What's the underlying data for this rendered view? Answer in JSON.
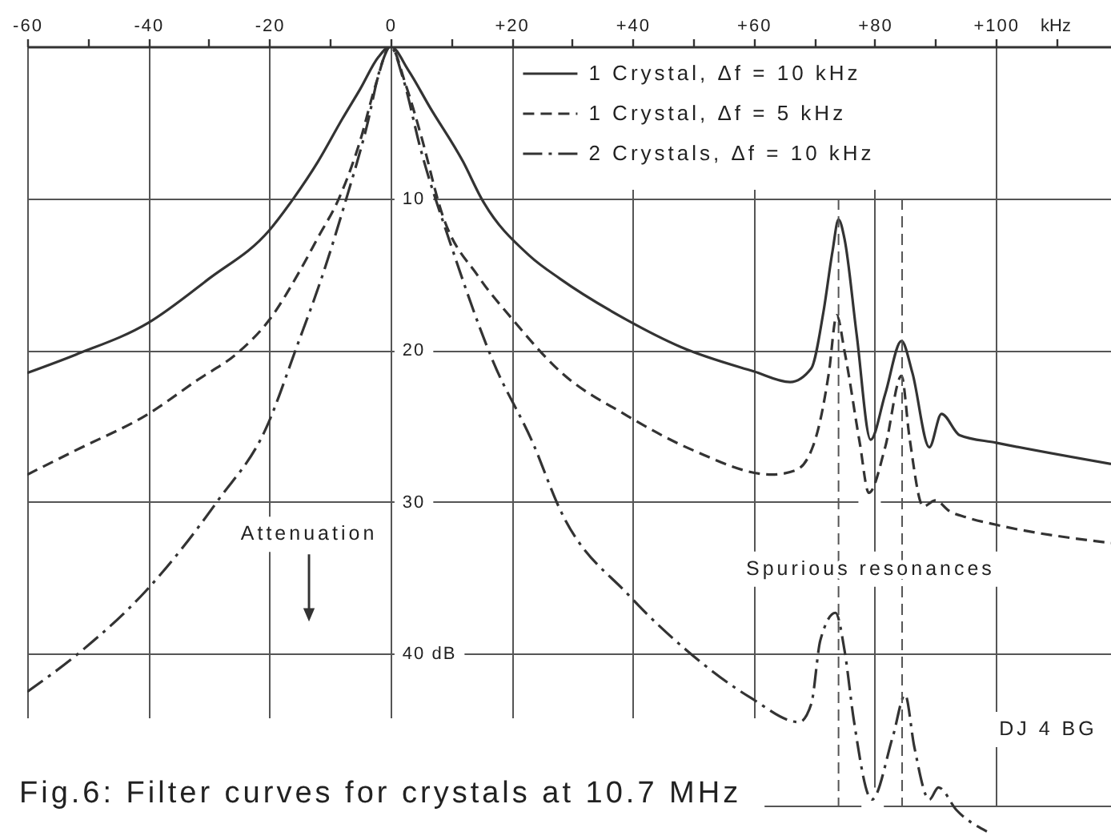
{
  "chart_data": {
    "type": "line",
    "title": "Fig.6: Filter curves for crystals at 10.7 MHz",
    "xlabel": "kHz",
    "xlim": [
      -60,
      119
    ],
    "ylim": [
      52,
      0
    ],
    "xticks": [
      -60,
      {
        "value": -50,
        "label": null
      },
      -40,
      {
        "value": -30,
        "label": null
      },
      -20,
      {
        "value": -10,
        "label": null
      },
      0,
      {
        "value": 10,
        "label": null
      },
      {
        "value": 20,
        "label": "+20"
      },
      {
        "value": 30,
        "label": null
      },
      {
        "value": 40,
        "label": "+40"
      },
      {
        "value": 50,
        "label": null
      },
      {
        "value": 60,
        "label": "+60"
      },
      {
        "value": 70,
        "label": null
      },
      {
        "value": 80,
        "label": "+80"
      },
      {
        "value": 90,
        "label": null
      },
      {
        "value": 100,
        "label": "+100"
      },
      {
        "value": 110,
        "label": null
      }
    ],
    "yticks": [
      10,
      20,
      30,
      {
        "value": 40,
        "label": "40 dB"
      },
      {
        "value": 50,
        "label": null
      }
    ],
    "grid": true,
    "legend": "top right",
    "marker": "none",
    "series": [
      {
        "name": "1 Crystal, Δf = 10 kHz",
        "color": "#333333",
        "line_style": "solid",
        "x": [
          -60,
          -52,
          -40,
          -30,
          -20,
          -16,
          -12,
          -8,
          -5,
          -2,
          0,
          3,
          6.5,
          12,
          15,
          23,
          28,
          39,
          48,
          60,
          66,
          69.5,
          71.5,
          73,
          74,
          75,
          77,
          79.3,
          81.7,
          84.4,
          86.2,
          89,
          91,
          94,
          100,
          119
        ],
        "values": [
          21.5,
          20.3,
          18.2,
          15.3,
          12.1,
          10.0,
          7.6,
          4.8,
          2.8,
          0.7,
          0,
          1.6,
          4.0,
          7.6,
          10.0,
          13.8,
          15.3,
          18.0,
          19.8,
          21.4,
          22.1,
          21.2,
          17.5,
          13.5,
          11.4,
          12.7,
          19.0,
          25.9,
          22.9,
          19.4,
          21.5,
          26.4,
          24.2,
          25.6,
          26.1,
          27.5
        ]
      },
      {
        "name": "1 Crystal, Δf = 5 kHz",
        "color": "#333333",
        "line_style": "dashed",
        "x": [
          -60,
          -52,
          -40,
          -32,
          -25,
          -20,
          -15,
          -12,
          -8.5,
          -5,
          -2.5,
          0,
          2.5,
          5,
          8.5,
          14.6,
          20,
          28,
          39,
          50,
          63,
          67,
          70.3,
          72.4,
          73.7,
          75,
          77.5,
          79,
          81.7,
          84.4,
          85.7,
          88,
          90,
          92.3,
          95,
          100,
          119
        ],
        "values": [
          28.2,
          26.6,
          24.2,
          22.0,
          20.1,
          18.0,
          14.8,
          12.6,
          10.0,
          6.2,
          2.6,
          0,
          2.5,
          5.8,
          11.0,
          15.2,
          17.9,
          21.4,
          24.3,
          26.6,
          28.2,
          27.9,
          25.7,
          21.5,
          17.7,
          20.1,
          26.1,
          29.4,
          26.4,
          21.7,
          25.7,
          30.3,
          29.9,
          30.6,
          31.0,
          31.5,
          32.7
        ]
      },
      {
        "name": "2 Crystals, Δf = 10 kHz",
        "color": "#333333",
        "line_style": "dashdot",
        "x": [
          -60,
          -51,
          -40.5,
          -28.5,
          -20.5,
          -15.5,
          -11,
          -7.5,
          -4,
          -1.5,
          0,
          2,
          5,
          10,
          17,
          23.5,
          28,
          39.5,
          49,
          59.5,
          67.5,
          69.5,
          71,
          73.5,
          75,
          76.5,
          79.5,
          83,
          85,
          86.5,
          89,
          90.5,
          93.5,
          98.5
        ],
        "values": [
          42.5,
          39.8,
          35.9,
          29.9,
          25.1,
          19.8,
          14.8,
          10.3,
          5.4,
          1.2,
          0,
          2.0,
          6.8,
          13.1,
          20.8,
          26.1,
          30.5,
          36.2,
          39.8,
          42.9,
          44.5,
          43.3,
          39.1,
          37.3,
          39.8,
          44.3,
          49.6,
          45.4,
          42.7,
          46.1,
          49.6,
          48.8,
          50.3,
          51.7
        ]
      }
    ],
    "ref_lines": [
      {
        "axis": "x",
        "value": 74,
        "color": "#555555",
        "line_style": "dashed"
      },
      {
        "axis": "x",
        "value": 84.5,
        "color": "#555555",
        "line_style": "dashed"
      }
    ],
    "annotations": [
      "Attenuation",
      "Spurious resonances",
      "DJ 4 BG"
    ]
  }
}
